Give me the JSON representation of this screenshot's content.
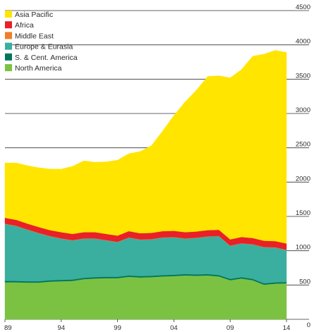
{
  "chart_data": {
    "type": "area",
    "stacked": true,
    "categories": [
      "89",
      "90",
      "91",
      "92",
      "93",
      "94",
      "95",
      "96",
      "97",
      "98",
      "99",
      "00",
      "01",
      "02",
      "03",
      "04",
      "05",
      "06",
      "07",
      "08",
      "09",
      "10",
      "11",
      "12",
      "13",
      "14"
    ],
    "x_tick_labels": [
      "89",
      "94",
      "99",
      "04",
      "09",
      "14"
    ],
    "y_tick_labels": [
      "0",
      "500",
      "1000",
      "1500",
      "2000",
      "2500",
      "3000",
      "3500",
      "4000",
      "4500"
    ],
    "ylim": [
      0,
      4500
    ],
    "y_axis_position": "right",
    "grid": "horizontal",
    "legend_position": "top-left",
    "series": [
      {
        "name": "North America",
        "color": "#7cc242",
        "values": [
          540,
          540,
          535,
          535,
          550,
          555,
          560,
          585,
          595,
          600,
          600,
          620,
          610,
          615,
          625,
          630,
          640,
          635,
          640,
          625,
          570,
          595,
          570,
          505,
          520,
          525
        ]
      },
      {
        "name": "S. & Cent. America",
        "color": "#00775a",
        "values": [
          20,
          20,
          20,
          20,
          20,
          20,
          20,
          20,
          20,
          20,
          20,
          20,
          20,
          20,
          20,
          20,
          20,
          20,
          20,
          20,
          20,
          20,
          20,
          20,
          20,
          20
        ]
      },
      {
        "name": "Europe & Eurasia",
        "color": "#3aafa0",
        "values": [
          830,
          800,
          750,
          700,
          640,
          600,
          570,
          570,
          560,
          530,
          505,
          550,
          530,
          530,
          545,
          545,
          515,
          530,
          545,
          565,
          480,
          490,
          500,
          525,
          505,
          465
        ]
      },
      {
        "name": "Middle East",
        "color": "#ef7d29",
        "values": [
          5,
          5,
          5,
          5,
          5,
          5,
          5,
          5,
          5,
          5,
          5,
          5,
          5,
          5,
          5,
          5,
          5,
          5,
          5,
          5,
          5,
          5,
          5,
          5,
          5,
          5
        ]
      },
      {
        "name": "Africa",
        "color": "#e92027",
        "values": [
          85,
          85,
          85,
          85,
          85,
          90,
          90,
          90,
          90,
          90,
          90,
          90,
          90,
          90,
          90,
          90,
          90,
          90,
          90,
          90,
          90,
          90,
          90,
          90,
          90,
          90
        ]
      },
      {
        "name": "Asia Pacific",
        "color": "#ffe500",
        "values": [
          800,
          830,
          845,
          865,
          890,
          920,
          985,
          1040,
          1020,
          1050,
          1100,
          1130,
          1190,
          1270,
          1460,
          1680,
          1900,
          2060,
          2240,
          2245,
          2355,
          2440,
          2650,
          2720,
          2780,
          2785
        ]
      }
    ]
  }
}
